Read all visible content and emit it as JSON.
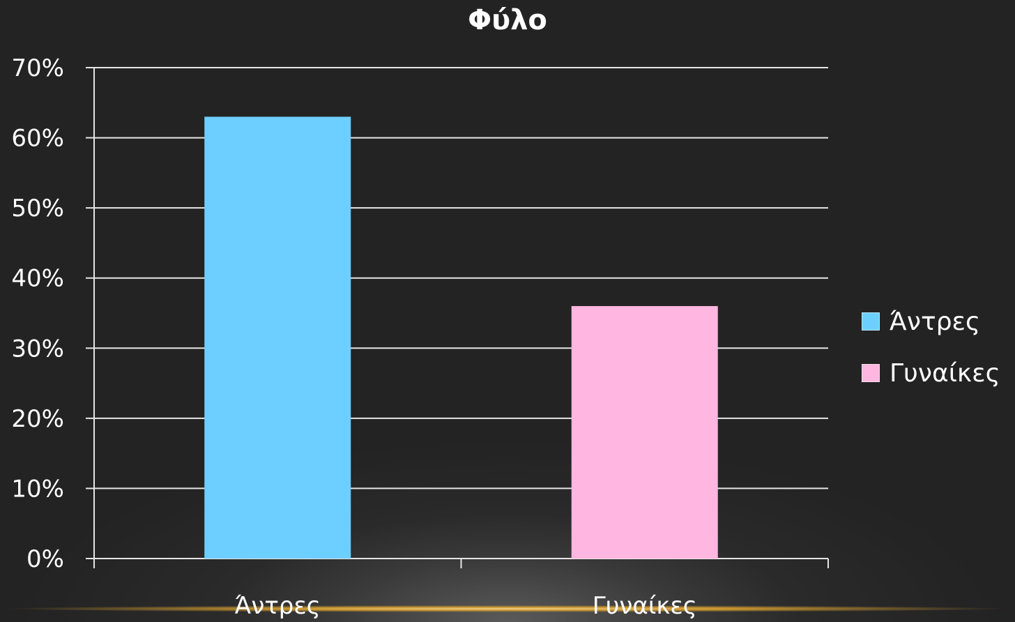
{
  "chart_data": {
    "type": "bar",
    "title": "Φύλο",
    "categories": [
      "Άντρες",
      "Γυναίκες"
    ],
    "values": [
      63,
      36
    ],
    "colors": [
      "#6dcfff",
      "#ffb6e0"
    ],
    "ylim": [
      0,
      70
    ],
    "yticks": [
      "0%",
      "10%",
      "20%",
      "30%",
      "40%",
      "50%",
      "60%",
      "70%"
    ],
    "grid": true,
    "legend": {
      "position": "right",
      "entries": [
        "Άντρες",
        "Γυναίκες"
      ]
    }
  }
}
